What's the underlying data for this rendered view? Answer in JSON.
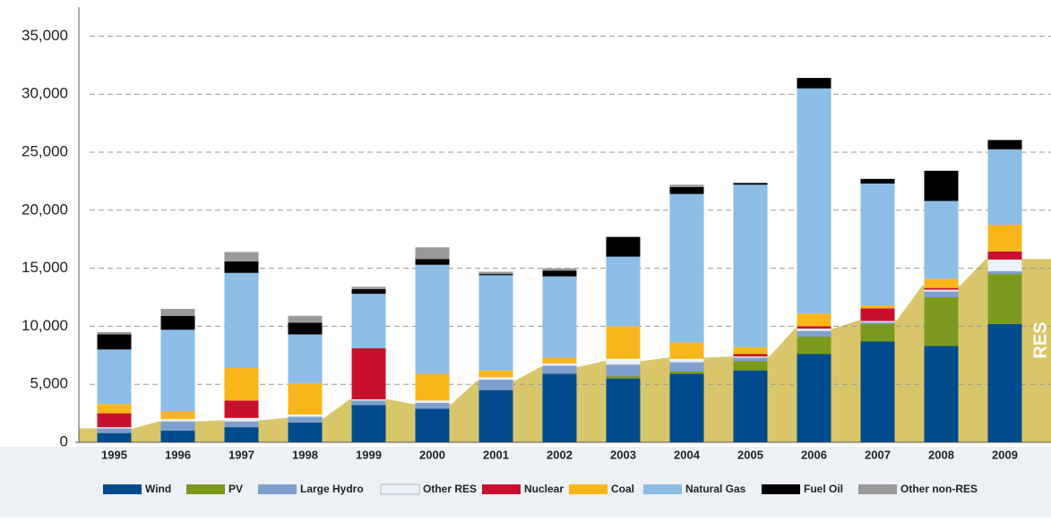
{
  "chart_data": {
    "type": "bar",
    "stacked": true,
    "categories": [
      "1995",
      "1996",
      "1997",
      "1998",
      "1999",
      "2000",
      "2001",
      "2002",
      "2003",
      "2004",
      "2005",
      "2006",
      "2007",
      "2008",
      "2009"
    ],
    "series": [
      {
        "name": "Wind",
        "color": "#004b8d",
        "values": [
          800,
          1000,
          1300,
          1700,
          3200,
          2900,
          4500,
          5900,
          5500,
          5900,
          6200,
          7600,
          8700,
          8300,
          10200
        ]
      },
      {
        "name": "PV",
        "color": "#7a9a1e",
        "values": [
          0,
          0,
          0,
          0,
          0,
          0,
          0,
          0,
          200,
          200,
          800,
          1500,
          1500,
          4200,
          4300
        ]
      },
      {
        "name": "Large Hydro",
        "color": "#7f9fcf",
        "values": [
          400,
          800,
          500,
          500,
          400,
          500,
          900,
          700,
          1000,
          800,
          300,
          500,
          150,
          500,
          250
        ]
      },
      {
        "name": "Other RES",
        "color": "#eaf2fa",
        "values": [
          100,
          200,
          300,
          200,
          100,
          200,
          200,
          200,
          500,
          300,
          100,
          200,
          100,
          150,
          1000
        ]
      },
      {
        "name": "Nuclear",
        "color": "#c8102e",
        "values": [
          1200,
          0,
          1500,
          0,
          4400,
          0,
          0,
          0,
          0,
          0,
          200,
          200,
          1100,
          150,
          700
        ]
      },
      {
        "name": "Coal",
        "color": "#f9b61a",
        "values": [
          800,
          700,
          2800,
          2700,
          0,
          2300,
          600,
          500,
          2800,
          1400,
          600,
          1100,
          250,
          800,
          2300
        ]
      },
      {
        "name": "Natural Gas",
        "color": "#8bbde6",
        "values": [
          4700,
          7000,
          8200,
          4200,
          4700,
          9400,
          8200,
          7000,
          6000,
          12800,
          14000,
          19400,
          10500,
          6700,
          6500
        ]
      },
      {
        "name": "Fuel Oil",
        "color": "#000000",
        "values": [
          1300,
          1200,
          1000,
          1000,
          400,
          500,
          100,
          500,
          1700,
          600,
          150,
          900,
          400,
          2600,
          800
        ]
      },
      {
        "name": "Other non-RES",
        "color": "#999999",
        "values": [
          200,
          600,
          800,
          600,
          200,
          1000,
          200,
          200,
          0,
          200,
          0,
          0,
          0,
          0,
          0
        ]
      }
    ],
    "area": {
      "name": "RES",
      "color": "#d9c66b",
      "values": [
        1200,
        1800,
        1900,
        2100,
        3700,
        3300,
        5300,
        6500,
        7000,
        7300,
        7400,
        9800,
        10500,
        13500,
        15800
      ]
    },
    "ylim": [
      0,
      37500
    ],
    "yticks": [
      0,
      {
        "value": 5000,
        "label": "5,000"
      },
      {
        "value": 10000,
        "label": "10,000"
      },
      {
        "value": 15000,
        "label": "15,000"
      },
      {
        "value": 20000,
        "label": "20,000"
      },
      {
        "value": 25000,
        "label": "25,000"
      },
      {
        "value": 30000,
        "label": "30,000"
      },
      {
        "value": 35000,
        "label": "35,000"
      }
    ],
    "grid": true,
    "legend": "bottom"
  }
}
